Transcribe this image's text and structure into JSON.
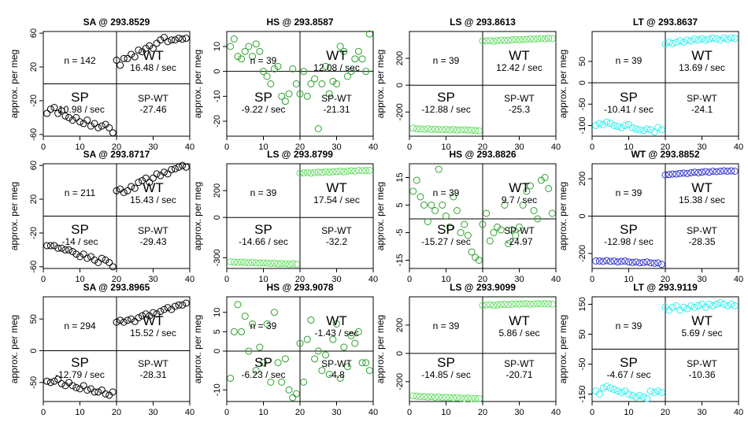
{
  "chart_data": [
    {
      "type": "scatter",
      "title": "SA @ 293.8529",
      "ylabel": "approx. per meg",
      "xlim": [
        0,
        40
      ],
      "ylim": [
        -62,
        62
      ],
      "xticks": [
        0,
        10,
        20,
        30,
        40
      ],
      "yticks": [
        60,
        20,
        -20,
        -60
      ],
      "hline": 0,
      "vline": 20,
      "color": "#000000",
      "x": [
        1,
        2,
        3,
        4,
        5,
        6,
        7,
        8,
        9,
        10,
        11,
        12,
        13,
        14,
        15,
        16,
        17,
        18,
        19,
        20,
        21,
        22,
        23,
        24,
        25,
        26,
        27,
        28,
        29,
        30,
        31,
        32,
        33,
        34,
        35,
        36,
        37,
        38,
        39
      ],
      "y": [
        -35,
        -30,
        -28,
        -35,
        -32,
        -38,
        -40,
        -43,
        -40,
        -45,
        -47,
        -43,
        -50,
        -47,
        -52,
        -50,
        -48,
        -52,
        -58,
        28,
        22,
        30,
        30,
        35,
        32,
        40,
        38,
        42,
        45,
        42,
        48,
        52,
        55,
        50,
        52,
        52,
        54,
        53,
        54
      ],
      "n_label": "n = 142",
      "wt_label": "WT",
      "wt_rate": "16.48 / sec",
      "sp_label": "SP",
      "sp_rate": "-10.98 / sec",
      "diff_label": "SP-WT",
      "diff_value": "-27.46"
    },
    {
      "type": "scatter",
      "title": "HS @ 293.8587",
      "ylabel": "approx. per meg",
      "xlim": [
        0,
        40
      ],
      "ylim": [
        -26,
        16
      ],
      "xticks": [
        0,
        10,
        20,
        30,
        40
      ],
      "yticks": [
        10,
        0,
        -10,
        -20
      ],
      "hline": 0,
      "vline": 20,
      "color": "#2ca02c",
      "x": [
        1,
        2,
        3,
        4,
        5,
        6,
        7,
        8,
        9,
        10,
        11,
        12,
        13,
        14,
        15,
        16,
        17,
        18,
        19,
        20,
        21,
        22,
        23,
        24,
        25,
        26,
        27,
        28,
        29,
        30,
        31,
        32,
        33,
        34,
        35,
        36,
        37,
        38,
        39
      ],
      "y": [
        10,
        13,
        6,
        5,
        8,
        10,
        6,
        11,
        8,
        0,
        -2,
        -5,
        1,
        2,
        -10,
        -12,
        -9,
        1,
        -5,
        -9,
        0,
        -10,
        -5,
        -3,
        -23,
        -5,
        2,
        -9,
        -4,
        -5,
        10,
        8,
        -2,
        0,
        5,
        8,
        5,
        0,
        15
      ],
      "n_label": "n = 39",
      "wt_label": "WT",
      "wt_rate": "12.08 / sec",
      "sp_label": "SP",
      "sp_rate": "-9.22 / sec",
      "diff_label": "SP-WT",
      "diff_value": "-21.31"
    },
    {
      "type": "scatter",
      "title": "LS @ 293.8613",
      "ylabel": "approx. per meg",
      "xlim": [
        0,
        40
      ],
      "ylim": [
        -380,
        400
      ],
      "xticks": [
        0,
        10,
        20,
        30,
        40
      ],
      "yticks": [
        200,
        0,
        -200
      ],
      "hline": 0,
      "vline": 20,
      "color": "#66dd66",
      "x": [
        1,
        2,
        3,
        4,
        5,
        6,
        7,
        8,
        9,
        10,
        11,
        12,
        13,
        14,
        15,
        16,
        17,
        18,
        19,
        20,
        21,
        22,
        23,
        24,
        25,
        26,
        27,
        28,
        29,
        30,
        31,
        32,
        33,
        34,
        35,
        36,
        37,
        38,
        39
      ],
      "y": [
        -320,
        -325,
        -325,
        -328,
        -325,
        -330,
        -328,
        -330,
        -332,
        -330,
        -333,
        -330,
        -335,
        -333,
        -332,
        -335,
        -335,
        -338,
        -340,
        330,
        330,
        332,
        328,
        332,
        335,
        333,
        335,
        338,
        340,
        338,
        340,
        342,
        345,
        343,
        345,
        348,
        345,
        350,
        348
      ],
      "n_label": "n = 39",
      "wt_label": "WT",
      "wt_rate": "12.42 / sec",
      "sp_label": "SP",
      "sp_rate": "-12.88 / sec",
      "diff_label": "SP-WT",
      "diff_value": "-25.3"
    },
    {
      "type": "scatter",
      "title": "LT @ 293.8637",
      "ylabel": "approx. per meg",
      "xlim": [
        0,
        40
      ],
      "ylim": [
        -125,
        120
      ],
      "xticks": [
        0,
        10,
        20,
        30,
        40
      ],
      "yticks": [
        50,
        0,
        -50,
        -100
      ],
      "hline": 0,
      "vline": 20,
      "color": "#33eeee",
      "x": [
        1,
        2,
        3,
        4,
        5,
        6,
        7,
        8,
        9,
        10,
        11,
        12,
        13,
        14,
        15,
        16,
        17,
        18,
        19,
        20,
        21,
        22,
        23,
        24,
        25,
        26,
        27,
        28,
        29,
        30,
        31,
        32,
        33,
        34,
        35,
        36,
        37,
        38,
        39
      ],
      "y": [
        -100,
        -95,
        -98,
        -92,
        -95,
        -100,
        -102,
        -105,
        -100,
        -98,
        -105,
        -108,
        -110,
        -112,
        -108,
        -110,
        -115,
        -105,
        -110,
        90,
        95,
        92,
        95,
        98,
        95,
        100,
        98,
        102,
        100,
        103,
        100,
        102,
        105,
        103,
        100,
        105,
        102,
        105,
        104
      ],
      "n_label": "n = 39",
      "wt_label": "WT",
      "wt_rate": "13.69 / sec",
      "sp_label": "SP",
      "sp_rate": "-10.41 / sec",
      "diff_label": "SP-WT",
      "diff_value": "-24.1"
    },
    {
      "type": "scatter",
      "title": "SA @ 293.8717",
      "ylabel": "approx. per meg",
      "xlim": [
        0,
        40
      ],
      "ylim": [
        -62,
        62
      ],
      "xticks": [
        0,
        10,
        20,
        30,
        40
      ],
      "yticks": [
        60,
        20,
        -20,
        -60
      ],
      "hline": 0,
      "vline": 20,
      "color": "#000000",
      "x": [
        1,
        2,
        3,
        4,
        5,
        6,
        7,
        8,
        9,
        10,
        11,
        12,
        13,
        14,
        15,
        16,
        17,
        18,
        19,
        20,
        21,
        22,
        23,
        24,
        25,
        26,
        27,
        28,
        29,
        30,
        31,
        32,
        33,
        34,
        35,
        36,
        37,
        38,
        39
      ],
      "y": [
        -35,
        -35,
        -35,
        -38,
        -38,
        -40,
        -40,
        -42,
        -45,
        -48,
        -45,
        -50,
        -48,
        -52,
        -55,
        -50,
        -52,
        -55,
        -60,
        30,
        32,
        28,
        30,
        35,
        33,
        40,
        42,
        45,
        40,
        45,
        50,
        48,
        52,
        50,
        55,
        56,
        58,
        60,
        58
      ],
      "n_label": "n = 211",
      "wt_label": "WT",
      "wt_rate": "15.43 / sec",
      "sp_label": "SP",
      "sp_rate": "-14 / sec",
      "diff_label": "SP-WT",
      "diff_value": "-29.43"
    },
    {
      "type": "scatter",
      "title": "LS @ 293.8799",
      "ylabel": "approx. per meg",
      "xlim": [
        0,
        40
      ],
      "ylim": [
        -380,
        400
      ],
      "xticks": [
        0,
        10,
        20,
        30,
        40
      ],
      "yticks": [
        200,
        0,
        -300
      ],
      "hline": 0,
      "vline": 20,
      "color": "#66dd66",
      "x": [
        1,
        2,
        3,
        4,
        5,
        6,
        7,
        8,
        9,
        10,
        11,
        12,
        13,
        14,
        15,
        16,
        17,
        18,
        19,
        20,
        21,
        22,
        23,
        24,
        25,
        26,
        27,
        28,
        29,
        30,
        31,
        32,
        33,
        34,
        35,
        36,
        37,
        38,
        39
      ],
      "y": [
        -330,
        -332,
        -335,
        -332,
        -335,
        -338,
        -335,
        -338,
        -340,
        -338,
        -340,
        -342,
        -340,
        -345,
        -343,
        -345,
        -348,
        -345,
        -348,
        330,
        332,
        335,
        330,
        335,
        338,
        335,
        340,
        338,
        340,
        342,
        345,
        340,
        345,
        348,
        345,
        350,
        348,
        350,
        350
      ],
      "n_label": "n = 39",
      "wt_label": "WT",
      "wt_rate": "17.54 / sec",
      "sp_label": "SP",
      "sp_rate": "-14.66 / sec",
      "diff_label": "SP-WT",
      "diff_value": "-32.2"
    },
    {
      "type": "scatter",
      "title": "HS @ 293.8826",
      "ylabel": "approx. per meg",
      "xlim": [
        0,
        40
      ],
      "ylim": [
        -18,
        20
      ],
      "xticks": [
        0,
        10,
        20,
        30,
        40
      ],
      "yticks": [
        15,
        5,
        -5,
        -15
      ],
      "hline": 0,
      "vline": 20,
      "color": "#2ca02c",
      "x": [
        1,
        2,
        3,
        4,
        5,
        6,
        7,
        8,
        9,
        10,
        11,
        12,
        13,
        14,
        15,
        16,
        17,
        18,
        19,
        20,
        21,
        22,
        23,
        24,
        25,
        26,
        27,
        28,
        29,
        30,
        31,
        32,
        33,
        34,
        35,
        36,
        37,
        38,
        39
      ],
      "y": [
        10,
        14,
        8,
        5,
        -1,
        5,
        3,
        18,
        5,
        1,
        -3,
        8,
        3,
        -5,
        -2,
        -6,
        -12,
        -14,
        -15,
        -2,
        2,
        -8,
        -5,
        -3,
        -4,
        5,
        -9,
        -4,
        -6,
        -3,
        5,
        10,
        12,
        3,
        0,
        14,
        15,
        11,
        2
      ],
      "n_label": "n = 39",
      "wt_label": "WT",
      "wt_rate": "9.7 / sec",
      "sp_label": "SP",
      "sp_rate": "-15.27 / sec",
      "diff_label": "SP-WT",
      "diff_value": "-24.97"
    },
    {
      "type": "scatter",
      "title": "WT @ 293.8852",
      "ylabel": "approx. per meg",
      "xlim": [
        0,
        40
      ],
      "ylim": [
        -280,
        280
      ],
      "xticks": [
        0,
        10,
        20,
        30,
        40
      ],
      "yticks": [
        200,
        0,
        -200
      ],
      "hline": 0,
      "vline": 20,
      "color": "#3333cc",
      "x": [
        1,
        2,
        3,
        4,
        5,
        6,
        7,
        8,
        9,
        10,
        11,
        12,
        13,
        14,
        15,
        16,
        17,
        18,
        19,
        20,
        21,
        22,
        23,
        24,
        25,
        26,
        27,
        28,
        29,
        30,
        31,
        32,
        33,
        34,
        35,
        36,
        37,
        38,
        39
      ],
      "y": [
        -240,
        -240,
        -242,
        -238,
        -242,
        -240,
        -245,
        -242,
        -240,
        -245,
        -248,
        -245,
        -250,
        -248,
        -245,
        -250,
        -252,
        -250,
        -258,
        220,
        222,
        225,
        225,
        228,
        230,
        228,
        232,
        235,
        232,
        235,
        238,
        235,
        240,
        238,
        240,
        242,
        240,
        242,
        240
      ],
      "n_label": "n = 39",
      "wt_label": "WT",
      "wt_rate": "15.38 / sec",
      "sp_label": "SP",
      "sp_rate": "-12.98 / sec",
      "diff_label": "SP-WT",
      "diff_value": "-28.35"
    },
    {
      "type": "scatter",
      "title": "SA @ 293.8965",
      "ylabel": "approx. per meg",
      "xlim": [
        0,
        40
      ],
      "ylim": [
        -80,
        85
      ],
      "xticks": [
        0,
        10,
        20,
        30,
        40
      ],
      "yticks": [
        50,
        0,
        -50
      ],
      "hline": 0,
      "vline": 20,
      "color": "#000000",
      "x": [
        1,
        2,
        3,
        4,
        5,
        6,
        7,
        8,
        9,
        10,
        11,
        12,
        13,
        14,
        15,
        16,
        17,
        18,
        19,
        20,
        21,
        22,
        23,
        24,
        25,
        26,
        27,
        28,
        29,
        30,
        31,
        32,
        33,
        34,
        35,
        36,
        37,
        38,
        39
      ],
      "y": [
        -48,
        -50,
        -48,
        -45,
        -52,
        -55,
        -50,
        -55,
        -58,
        -60,
        -55,
        -62,
        -60,
        -65,
        -65,
        -62,
        -68,
        -70,
        -65,
        45,
        48,
        45,
        48,
        50,
        46,
        52,
        55,
        58,
        55,
        60,
        58,
        62,
        65,
        68,
        65,
        70,
        72,
        72,
        75
      ],
      "n_label": "n = 294",
      "wt_label": "WT",
      "wt_rate": "15.52 / sec",
      "sp_label": "SP",
      "sp_rate": "-12.79 / sec",
      "diff_label": "SP-WT",
      "diff_value": "-28.31"
    },
    {
      "type": "scatter",
      "title": "HS @ 293.9078",
      "ylabel": "approx. per meg",
      "xlim": [
        0,
        40
      ],
      "ylim": [
        -13,
        14
      ],
      "xticks": [
        0,
        10,
        20,
        30,
        40
      ],
      "yticks": [
        10,
        5,
        0,
        -10
      ],
      "hline": 0,
      "vline": 20,
      "color": "#2ca02c",
      "x": [
        1,
        2,
        3,
        4,
        5,
        6,
        7,
        8,
        9,
        10,
        11,
        12,
        13,
        14,
        15,
        16,
        17,
        18,
        19,
        20,
        21,
        22,
        23,
        24,
        25,
        26,
        27,
        28,
        29,
        30,
        31,
        32,
        33,
        34,
        35,
        36,
        37,
        38,
        39
      ],
      "y": [
        -7,
        5,
        12,
        5,
        9,
        0,
        7,
        -5,
        1,
        -3,
        7,
        -8,
        10,
        -3,
        -8,
        -2,
        -10,
        -12,
        -11,
        2,
        -8,
        3,
        8,
        -2,
        0,
        -5,
        -1,
        -6,
        3,
        7,
        -7,
        1,
        -4,
        4,
        2,
        5,
        -3,
        -3,
        -5
      ],
      "n_label": "n = 39",
      "wt_label": "WT",
      "wt_rate": "-1.43 / sec",
      "sp_label": "SP",
      "sp_rate": "-6.23 / sec",
      "diff_label": "SP-WT",
      "diff_value": "-4.8"
    },
    {
      "type": "scatter",
      "title": "LS @ 293.9099",
      "ylabel": "approx. per meg",
      "xlim": [
        0,
        40
      ],
      "ylim": [
        -340,
        400
      ],
      "xticks": [
        0,
        10,
        20,
        30,
        40
      ],
      "yticks": [
        200,
        0,
        -200
      ],
      "hline": 0,
      "vline": 20,
      "color": "#66dd66",
      "x": [
        1,
        2,
        3,
        4,
        5,
        6,
        7,
        8,
        9,
        10,
        11,
        12,
        13,
        14,
        15,
        16,
        17,
        18,
        19,
        20,
        21,
        22,
        23,
        24,
        25,
        26,
        27,
        28,
        29,
        30,
        31,
        32,
        33,
        34,
        35,
        36,
        37,
        38,
        39
      ],
      "y": [
        -300,
        -302,
        -305,
        -305,
        -308,
        -305,
        -310,
        -308,
        -312,
        -310,
        -312,
        -315,
        -312,
        -315,
        -318,
        -315,
        -318,
        -320,
        -320,
        340,
        342,
        345,
        340,
        342,
        345,
        348,
        345,
        348,
        350,
        348,
        350,
        352,
        348,
        350,
        352,
        350,
        352,
        350,
        348
      ],
      "n_label": "n = 39",
      "wt_label": "WT",
      "wt_rate": "5.86 / sec",
      "sp_label": "SP",
      "sp_rate": "-14.85 / sec",
      "diff_label": "SP-WT",
      "diff_value": "-20.71"
    },
    {
      "type": "scatter",
      "title": "LT @ 293.9119",
      "ylabel": "approx. per meg",
      "xlim": [
        0,
        40
      ],
      "ylim": [
        -175,
        175
      ],
      "xticks": [
        0,
        10,
        20,
        30,
        40
      ],
      "yticks": [
        150,
        50,
        -50,
        -150
      ],
      "hline": 0,
      "vline": 20,
      "color": "#33eeee",
      "x": [
        1,
        2,
        3,
        4,
        5,
        6,
        7,
        8,
        9,
        10,
        11,
        12,
        13,
        14,
        15,
        16,
        17,
        18,
        19,
        20,
        21,
        22,
        23,
        24,
        25,
        26,
        27,
        28,
        29,
        30,
        31,
        32,
        33,
        34,
        35,
        36,
        37,
        38,
        39
      ],
      "y": [
        -140,
        -150,
        -130,
        -125,
        -130,
        -135,
        -140,
        -145,
        -140,
        -150,
        -155,
        -160,
        -155,
        -160,
        -165,
        -140,
        -145,
        -140,
        -145,
        140,
        130,
        140,
        145,
        130,
        140,
        135,
        145,
        140,
        145,
        150,
        140,
        150,
        145,
        150,
        155,
        150,
        145,
        150,
        145
      ],
      "n_label": "n = 39",
      "wt_label": "WT",
      "wt_rate": "5.69 / sec",
      "sp_label": "SP",
      "sp_rate": "-4.67 / sec",
      "diff_label": "SP-WT",
      "diff_value": "-10.36"
    }
  ]
}
